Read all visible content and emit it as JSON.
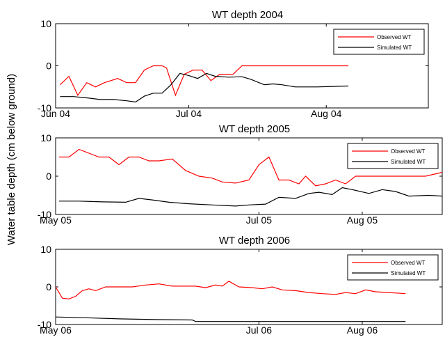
{
  "figure": {
    "ylabel": "Water table depth (cm below ground)"
  },
  "chart_data": [
    {
      "type": "line",
      "title": "WT depth 2004",
      "xlim": [
        "2004-06-01",
        "2004-08-24"
      ],
      "ylim": [
        -10,
        10
      ],
      "yticks": [
        10,
        0,
        -10
      ],
      "xticks": [
        {
          "date": "2004-06-01",
          "label": "Jun 04"
        },
        {
          "date": "2004-07-01",
          "label": "Jul 04"
        },
        {
          "date": "2004-08-01",
          "label": "Aug 04"
        }
      ],
      "legend_position": "top-right",
      "series": [
        {
          "name": "Observed WT",
          "color": "#ff0000",
          "points": [
            [
              "2004-06-02",
              -4.5
            ],
            [
              "2004-06-04",
              -2.5
            ],
            [
              "2004-06-06",
              -7.0
            ],
            [
              "2004-06-08",
              -4.0
            ],
            [
              "2004-06-10",
              -5.0
            ],
            [
              "2004-06-12",
              -4.0
            ],
            [
              "2004-06-15",
              -3.0
            ],
            [
              "2004-06-17",
              -4.0
            ],
            [
              "2004-06-19",
              -4.0
            ],
            [
              "2004-06-21",
              -1.0
            ],
            [
              "2004-06-23",
              0.0
            ],
            [
              "2004-06-25",
              0.0
            ],
            [
              "2004-06-26",
              -0.5
            ],
            [
              "2004-06-28",
              -7.0
            ],
            [
              "2004-06-30",
              -2.0
            ],
            [
              "2004-07-02",
              -1.0
            ],
            [
              "2004-07-04",
              -1.0
            ],
            [
              "2004-07-06",
              -3.5
            ],
            [
              "2004-07-08",
              -2.0
            ],
            [
              "2004-07-11",
              -2.0
            ],
            [
              "2004-07-13",
              0.0
            ],
            [
              "2004-07-16",
              0.0
            ],
            [
              "2004-07-20",
              0.0
            ],
            [
              "2004-07-25",
              0.0
            ],
            [
              "2004-07-31",
              0.0
            ],
            [
              "2004-08-06",
              0.0
            ]
          ]
        },
        {
          "name": "Simulated WT",
          "color": "#000000",
          "points": [
            [
              "2004-06-02",
              -7.3
            ],
            [
              "2004-06-05",
              -7.3
            ],
            [
              "2004-06-08",
              -7.6
            ],
            [
              "2004-06-11",
              -8.0
            ],
            [
              "2004-06-14",
              -8.0
            ],
            [
              "2004-06-17",
              -8.3
            ],
            [
              "2004-06-19",
              -8.6
            ],
            [
              "2004-06-21",
              -7.2
            ],
            [
              "2004-06-23",
              -6.5
            ],
            [
              "2004-06-25",
              -6.5
            ],
            [
              "2004-06-27",
              -4.5
            ],
            [
              "2004-06-29",
              -1.8
            ],
            [
              "2004-07-01",
              -2.3
            ],
            [
              "2004-07-03",
              -3.0
            ],
            [
              "2004-07-05",
              -1.8
            ],
            [
              "2004-07-07",
              -2.5
            ],
            [
              "2004-07-10",
              -2.7
            ],
            [
              "2004-07-13",
              -2.6
            ],
            [
              "2004-07-15",
              -3.2
            ],
            [
              "2004-07-18",
              -4.5
            ],
            [
              "2004-07-20",
              -4.3
            ],
            [
              "2004-07-22",
              -4.5
            ],
            [
              "2004-07-25",
              -5.0
            ],
            [
              "2004-07-28",
              -5.0
            ],
            [
              "2004-07-30",
              -5.0
            ],
            [
              "2004-08-06",
              -4.8
            ]
          ]
        }
      ]
    },
    {
      "type": "line",
      "title": "WT depth 2005",
      "xlim": [
        "2005-05-01",
        "2005-08-25"
      ],
      "ylim": [
        -10,
        10
      ],
      "yticks": [
        10,
        0,
        -10
      ],
      "xticks": [
        {
          "date": "2005-05-01",
          "label": "May 05"
        },
        {
          "date": "2005-07-01",
          "label": "Jul 05"
        },
        {
          "date": "2005-08-01",
          "label": "Aug 05"
        }
      ],
      "legend_position": "top-right",
      "series": [
        {
          "name": "Observed WT",
          "color": "#ff0000",
          "points": [
            [
              "2005-05-02",
              5.0
            ],
            [
              "2005-05-05",
              5.0
            ],
            [
              "2005-05-08",
              7.0
            ],
            [
              "2005-05-11",
              6.0
            ],
            [
              "2005-05-14",
              5.0
            ],
            [
              "2005-05-17",
              5.0
            ],
            [
              "2005-05-20",
              3.0
            ],
            [
              "2005-05-23",
              5.0
            ],
            [
              "2005-05-26",
              5.0
            ],
            [
              "2005-05-29",
              4.0
            ],
            [
              "2005-06-01",
              4.0
            ],
            [
              "2005-06-05",
              4.5
            ],
            [
              "2005-06-09",
              1.5
            ],
            [
              "2005-06-13",
              0.0
            ],
            [
              "2005-06-17",
              -0.5
            ],
            [
              "2005-06-20",
              -1.5
            ],
            [
              "2005-06-24",
              -1.8
            ],
            [
              "2005-06-28",
              -1.0
            ],
            [
              "2005-07-01",
              3.0
            ],
            [
              "2005-07-04",
              5.0
            ],
            [
              "2005-07-07",
              -1.0
            ],
            [
              "2005-07-10",
              -1.0
            ],
            [
              "2005-07-13",
              -2.0
            ],
            [
              "2005-07-15",
              0.0
            ],
            [
              "2005-07-18",
              -2.5
            ],
            [
              "2005-07-21",
              -2.0
            ],
            [
              "2005-07-24",
              -1.0
            ],
            [
              "2005-07-27",
              -2.0
            ],
            [
              "2005-07-30",
              0.0
            ],
            [
              "2005-08-02",
              0.0
            ],
            [
              "2005-08-06",
              0.0
            ],
            [
              "2005-08-10",
              0.0
            ],
            [
              "2005-08-14",
              0.0
            ],
            [
              "2005-08-20",
              0.0
            ],
            [
              "2005-08-25",
              1.0
            ]
          ]
        },
        {
          "name": "Simulated WT",
          "color": "#000000",
          "points": [
            [
              "2005-05-02",
              -6.5
            ],
            [
              "2005-05-08",
              -6.5
            ],
            [
              "2005-05-15",
              -6.7
            ],
            [
              "2005-05-22",
              -6.8
            ],
            [
              "2005-05-26",
              -5.8
            ],
            [
              "2005-05-30",
              -6.2
            ],
            [
              "2005-06-04",
              -6.8
            ],
            [
              "2005-06-10",
              -7.2
            ],
            [
              "2005-06-17",
              -7.5
            ],
            [
              "2005-06-24",
              -7.8
            ],
            [
              "2005-06-28",
              -7.5
            ],
            [
              "2005-07-03",
              -7.3
            ],
            [
              "2005-07-07",
              -5.5
            ],
            [
              "2005-07-12",
              -5.8
            ],
            [
              "2005-07-16",
              -4.5
            ],
            [
              "2005-07-19",
              -4.2
            ],
            [
              "2005-07-23",
              -4.8
            ],
            [
              "2005-07-26",
              -3.0
            ],
            [
              "2005-07-29",
              -3.5
            ],
            [
              "2005-08-03",
              -4.5
            ],
            [
              "2005-08-07",
              -3.5
            ],
            [
              "2005-08-11",
              -4.0
            ],
            [
              "2005-08-15",
              -5.2
            ],
            [
              "2005-08-21",
              -5.0
            ],
            [
              "2005-08-25",
              -5.2
            ]
          ]
        }
      ]
    },
    {
      "type": "line",
      "title": "WT depth 2006",
      "xlim": [
        "2006-05-01",
        "2006-08-25"
      ],
      "ylim": [
        -10,
        10
      ],
      "yticks": [
        10,
        0,
        -10
      ],
      "xticks": [
        {
          "date": "2006-05-01",
          "label": "May 06"
        },
        {
          "date": "2006-07-01",
          "label": "Jul 06"
        },
        {
          "date": "2006-08-01",
          "label": "Aug 06"
        }
      ],
      "legend_position": "top-right",
      "series": [
        {
          "name": "Observed WT",
          "color": "#ff0000",
          "points": [
            [
              "2006-05-01",
              0.0
            ],
            [
              "2006-05-03",
              -3.0
            ],
            [
              "2006-05-05",
              -3.2
            ],
            [
              "2006-05-07",
              -2.5
            ],
            [
              "2006-05-09",
              -1.0
            ],
            [
              "2006-05-11",
              -0.5
            ],
            [
              "2006-05-13",
              -1.0
            ],
            [
              "2006-05-16",
              0.0
            ],
            [
              "2006-05-20",
              0.0
            ],
            [
              "2006-05-24",
              0.0
            ],
            [
              "2006-05-28",
              0.5
            ],
            [
              "2006-06-01",
              0.8
            ],
            [
              "2006-06-05",
              0.2
            ],
            [
              "2006-06-09",
              0.2
            ],
            [
              "2006-06-12",
              0.2
            ],
            [
              "2006-06-15",
              -0.2
            ],
            [
              "2006-06-18",
              0.5
            ],
            [
              "2006-06-20",
              0.2
            ],
            [
              "2006-06-22",
              1.5
            ],
            [
              "2006-06-25",
              0.0
            ],
            [
              "2006-06-29",
              -0.2
            ],
            [
              "2006-07-02",
              -0.5
            ],
            [
              "2006-07-05",
              0.0
            ],
            [
              "2006-07-08",
              -0.8
            ],
            [
              "2006-07-12",
              -1.0
            ],
            [
              "2006-07-16",
              -1.5
            ],
            [
              "2006-07-20",
              -1.8
            ],
            [
              "2006-07-24",
              -2.0
            ],
            [
              "2006-07-27",
              -1.5
            ],
            [
              "2006-07-30",
              -1.8
            ],
            [
              "2006-08-02",
              -0.8
            ],
            [
              "2006-08-05",
              -1.3
            ],
            [
              "2006-08-09",
              -1.5
            ],
            [
              "2006-08-14",
              -1.8
            ]
          ]
        },
        {
          "name": "Simulated WT",
          "color": "#000000",
          "points": [
            [
              "2006-05-01",
              -8.0
            ],
            [
              "2006-05-10",
              -8.2
            ],
            [
              "2006-05-20",
              -8.5
            ],
            [
              "2006-06-01",
              -8.7
            ],
            [
              "2006-06-11",
              -8.8
            ],
            [
              "2006-06-12",
              -9.2
            ],
            [
              "2006-06-25",
              -9.2
            ],
            [
              "2006-07-10",
              -9.2
            ],
            [
              "2006-07-25",
              -9.2
            ],
            [
              "2006-08-14",
              -9.2
            ]
          ]
        }
      ]
    }
  ]
}
